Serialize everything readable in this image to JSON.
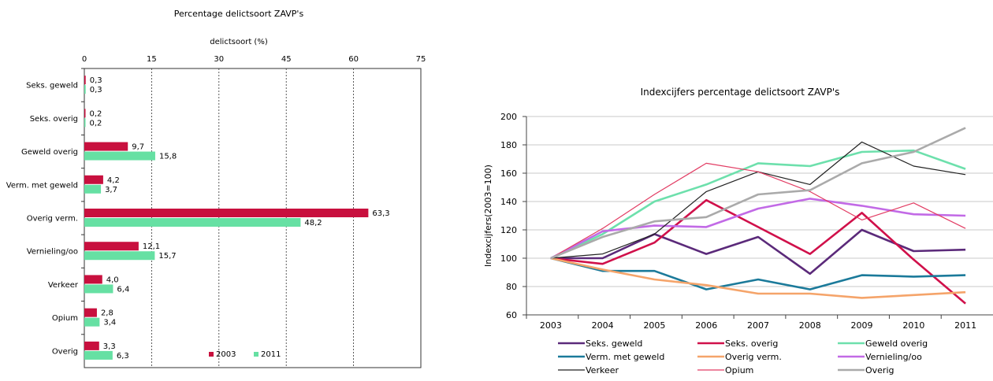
{
  "chart_data": [
    {
      "type": "bar",
      "orientation": "horizontal",
      "title": "Percentage delictsoort ZAVP's",
      "xlabel": "delictsoort (%)",
      "xlim": [
        0,
        75
      ],
      "xticks": [
        "0",
        "15",
        "30",
        "45",
        "60",
        "75"
      ],
      "categories": [
        "Seks. geweld",
        "Seks. overig",
        "Geweld overig",
        "Verm. met geweld",
        "Overig verm.",
        "Vernieling/oo",
        "Verkeer",
        "Opium",
        "Overig"
      ],
      "series": [
        {
          "name": "2003",
          "color": "#c8103e",
          "values": [
            0.3,
            0.2,
            9.7,
            4.2,
            63.3,
            12.1,
            4.0,
            2.8,
            3.3
          ],
          "labels": [
            "0,3",
            "0,2",
            "9,7",
            "4,2",
            "63,3",
            "12,1",
            "4,0",
            "2,8",
            "3,3"
          ]
        },
        {
          "name": "2011",
          "color": "#66e0a3",
          "values": [
            0.3,
            0.2,
            15.8,
            3.7,
            48.2,
            15.7,
            6.4,
            3.4,
            6.3
          ],
          "labels": [
            "0,3",
            "0,2",
            "15,8",
            "3,7",
            "48,2",
            "15,7",
            "6,4",
            "3,4",
            "6,3"
          ]
        }
      ],
      "grid": "vertical dotted lines",
      "legend": "bottom"
    },
    {
      "type": "line",
      "title": "Indexcijfers percentage delictsoort ZAVP's",
      "xlabel": "",
      "ylabel": "Indexcijfers(2003=100)",
      "x": [
        "2003",
        "2004",
        "2005",
        "2006",
        "2007",
        "2008",
        "2009",
        "2010",
        "2011"
      ],
      "ylim": [
        60,
        200
      ],
      "yticks": [
        "60",
        "80",
        "100",
        "120",
        "140",
        "160",
        "180",
        "200"
      ],
      "grid": "horizontal lines",
      "legend": "bottom, 3 columns",
      "series": [
        {
          "name": "Seks. geweld",
          "color": "#5b2a7a",
          "width": "thick",
          "values": [
            100,
            100,
            117,
            103,
            115,
            89,
            120,
            105,
            106
          ]
        },
        {
          "name": "Seks. overig",
          "color": "#d0104a",
          "width": "thick",
          "values": [
            100,
            96,
            111,
            141,
            122,
            103,
            132,
            99,
            68
          ]
        },
        {
          "name": "Geweld overig",
          "color": "#6de0ac",
          "width": "thick",
          "values": [
            100,
            117,
            140,
            152,
            167,
            165,
            175,
            176,
            163
          ]
        },
        {
          "name": "Verm. met geweld",
          "color": "#1b7a9a",
          "width": "thick",
          "values": [
            100,
            91,
            91,
            78,
            85,
            78,
            88,
            87,
            88
          ]
        },
        {
          "name": "Overig verm.",
          "color": "#f5a46a",
          "width": "thick",
          "values": [
            100,
            92,
            85,
            81,
            75,
            75,
            72,
            74,
            76
          ]
        },
        {
          "name": "Vernieling/oo",
          "color": "#c26ae6",
          "width": "thick",
          "values": [
            100,
            119,
            123,
            122,
            135,
            142,
            137,
            131,
            130
          ]
        },
        {
          "name": "Verkeer",
          "color": "#222222",
          "width": "thin",
          "values": [
            100,
            103,
            117,
            147,
            161,
            152,
            182,
            165,
            159
          ]
        },
        {
          "name": "Opium",
          "color": "#e23c63",
          "width": "thin",
          "values": [
            100,
            121,
            145,
            167,
            161,
            147,
            127,
            139,
            121
          ]
        },
        {
          "name": "Overig",
          "color": "#aaaaaa",
          "width": "thick",
          "values": [
            100,
            115,
            126,
            129,
            145,
            148,
            167,
            175,
            192
          ]
        }
      ]
    }
  ]
}
